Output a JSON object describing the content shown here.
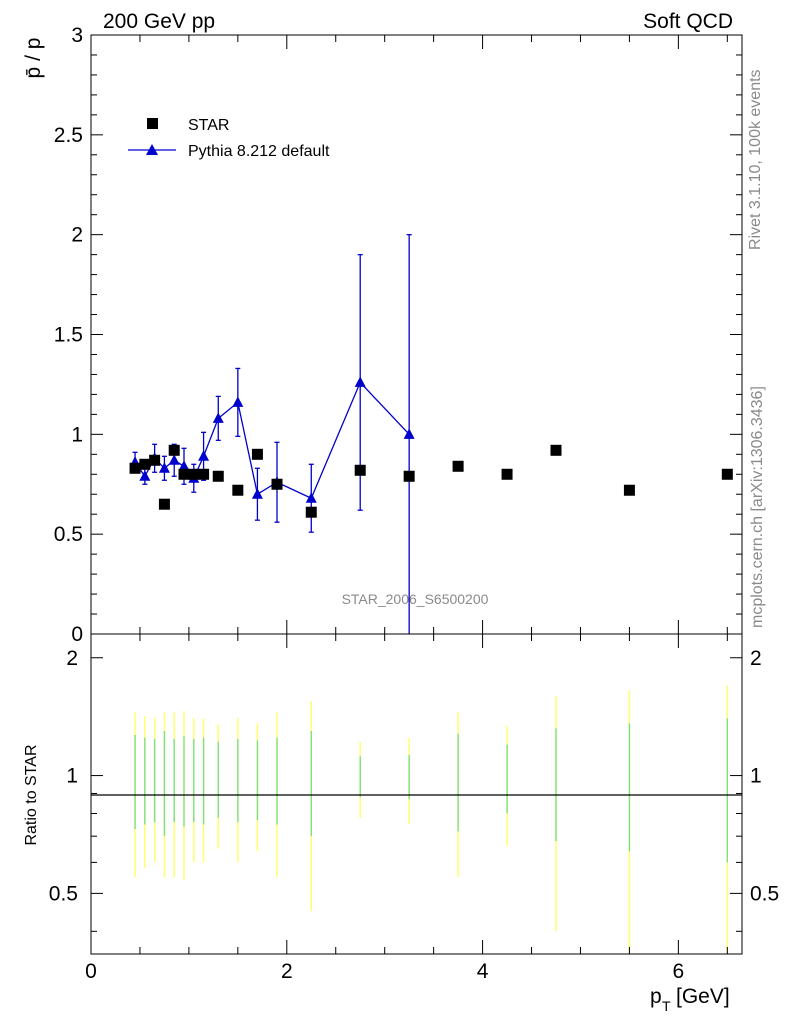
{
  "header": {
    "left": "200 GeV pp",
    "right": "Soft QCD"
  },
  "side_labels": {
    "rivet": "Rivet 3.1.10,  100k events",
    "mcplots": "mcplots.cern.ch [arXiv:1306.3436]"
  },
  "watermark": "STAR_2006_S6500200",
  "colors": {
    "star": "#000000",
    "pythia": "#0000cc",
    "band_inner": "#7fe07f",
    "band_outer": "#ffff66"
  },
  "chart_data": [
    {
      "type": "scatter",
      "ylabel": "p̄ / p",
      "ylim": [
        0,
        3
      ],
      "xlim": [
        0,
        6.65
      ],
      "yticks": [
        "0",
        "0.5",
        "1",
        "1.5",
        "2",
        "2.5",
        "3"
      ],
      "legend_placement": "top-left",
      "series": [
        {
          "name": "STAR",
          "marker": "square",
          "x": [
            0.45,
            0.55,
            0.65,
            0.75,
            0.85,
            0.95,
            1.05,
            1.15,
            1.3,
            1.5,
            1.7,
            1.9,
            2.25,
            2.75,
            3.25,
            3.75,
            4.25,
            4.75,
            5.5,
            6.5
          ],
          "y": [
            0.83,
            0.85,
            0.87,
            0.65,
            0.92,
            0.8,
            0.8,
            0.8,
            0.79,
            0.72,
            0.9,
            0.75,
            0.61,
            0.82,
            0.79,
            0.84,
            0.8,
            0.92,
            0.72,
            0.8
          ]
        },
        {
          "name": "Pythia 8.212 default",
          "marker": "triangle",
          "x": [
            0.45,
            0.55,
            0.65,
            0.75,
            0.85,
            0.95,
            1.05,
            1.15,
            1.3,
            1.5,
            1.7,
            1.9,
            2.25,
            2.75,
            3.25
          ],
          "y": [
            0.86,
            0.79,
            0.88,
            0.83,
            0.87,
            0.84,
            0.78,
            0.89,
            1.08,
            1.16,
            0.7,
            0.76,
            0.68,
            1.26,
            1.0
          ],
          "yerr": [
            0.05,
            0.04,
            0.07,
            0.06,
            0.08,
            0.09,
            0.07,
            0.12,
            0.11,
            0.17,
            0.13,
            0.2,
            0.17,
            0.64,
            1.0
          ]
        }
      ]
    },
    {
      "type": "scatter",
      "ylabel": "Ratio to STAR",
      "xlabel": "p_T [GeV]",
      "ylim": [
        0.35,
        2.3
      ],
      "xlim": [
        0,
        6.65
      ],
      "yticks": [
        "0.5",
        "1",
        "2"
      ],
      "xticks": [
        "0",
        "2",
        "4",
        "6"
      ],
      "reference_line": 1,
      "band_x": [
        0.45,
        0.55,
        0.65,
        0.75,
        0.85,
        0.95,
        1.05,
        1.15,
        1.3,
        1.5,
        1.7,
        1.9,
        2.25,
        2.75,
        3.25,
        3.75,
        4.25,
        4.75,
        5.5,
        6.5
      ],
      "band_inner": [
        0.27,
        0.25,
        0.24,
        0.3,
        0.24,
        0.26,
        0.24,
        0.25,
        0.22,
        0.24,
        0.23,
        0.25,
        0.3,
        0.12,
        0.13,
        0.28,
        0.2,
        0.32,
        0.36,
        0.4
      ],
      "band_outer": [
        0.45,
        0.42,
        0.4,
        0.45,
        0.45,
        0.46,
        0.4,
        0.4,
        0.35,
        0.4,
        0.36,
        0.45,
        0.55,
        0.22,
        0.25,
        0.45,
        0.34,
        0.6,
        0.65,
        0.7
      ]
    }
  ]
}
